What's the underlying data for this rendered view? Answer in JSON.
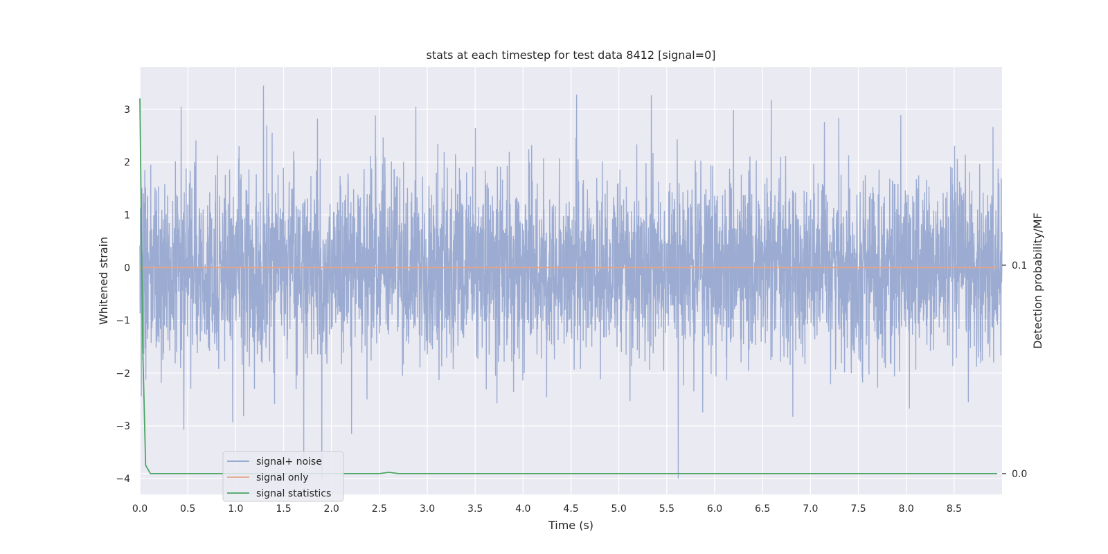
{
  "chart_data": {
    "type": "line",
    "title": "stats at each timestep for test data 8412 [signal=0]",
    "xlabel": "Time (s)",
    "ylabel": "Whitened strain",
    "ylabel_right": "Detection probability/MF",
    "xlim": [
      0,
      9
    ],
    "ylim": [
      -4.3,
      3.8
    ],
    "ylim_right": [
      -0.01,
      0.195
    ],
    "x_ticks": [
      0.0,
      0.5,
      1.0,
      1.5,
      2.0,
      2.5,
      3.0,
      3.5,
      4.0,
      4.5,
      5.0,
      5.5,
      6.0,
      6.5,
      7.0,
      7.5,
      8.0,
      8.5
    ],
    "x_tick_labels": [
      "0.0",
      "0.5",
      "1.0",
      "1.5",
      "2.0",
      "2.5",
      "3.0",
      "3.5",
      "4.0",
      "4.5",
      "5.0",
      "5.5",
      "6.0",
      "6.5",
      "7.0",
      "7.5",
      "8.0",
      "8.5"
    ],
    "y_ticks": [
      -4,
      -3,
      -2,
      -1,
      0,
      1,
      2,
      3
    ],
    "y_tick_labels": [
      "−4",
      "−3",
      "−2",
      "−1",
      "0",
      "1",
      "2",
      "3"
    ],
    "y_right_ticks": [
      0.0,
      0.1
    ],
    "y_right_tick_labels": [
      "0.0",
      "0.1"
    ],
    "grid": true,
    "legend_position": "lower-left",
    "series": [
      {
        "name": "signal+ noise",
        "axis": "left",
        "color": "#8da0cb",
        "kind": "noise",
        "x_range": [
          0,
          9
        ],
        "std": 0.85,
        "max": 3.45,
        "min": -4.0,
        "peaks": [
          [
            0.43,
            3.05
          ],
          [
            1.29,
            3.45
          ],
          [
            2.88,
            3.05
          ],
          [
            4.56,
            3.28
          ],
          [
            5.34,
            3.27
          ],
          [
            6.59,
            3.18
          ],
          [
            1.9,
            -4.0
          ],
          [
            2.21,
            -3.15
          ],
          [
            5.62,
            -4.0
          ]
        ]
      },
      {
        "name": "signal only",
        "axis": "left",
        "color": "#e5a58a",
        "kind": "line",
        "x": [
          0,
          8.95
        ],
        "y": [
          0,
          0
        ]
      },
      {
        "name": "signal statistics",
        "axis": "right",
        "color": "#4aa564",
        "kind": "line",
        "x": [
          0.0,
          0.015,
          0.03,
          0.06,
          0.11,
          0.5,
          1.0,
          2.0,
          2.5,
          2.6,
          2.7,
          3.0,
          4.0,
          5.0,
          6.0,
          7.0,
          8.0,
          8.95
        ],
        "y": [
          0.18,
          0.12,
          0.06,
          0.004,
          0.0,
          0.0,
          0.0,
          0.0,
          0.0,
          0.0006,
          0.0,
          0.0,
          0.0,
          0.0,
          0.0,
          0.0,
          0.0,
          0.0
        ]
      }
    ]
  }
}
